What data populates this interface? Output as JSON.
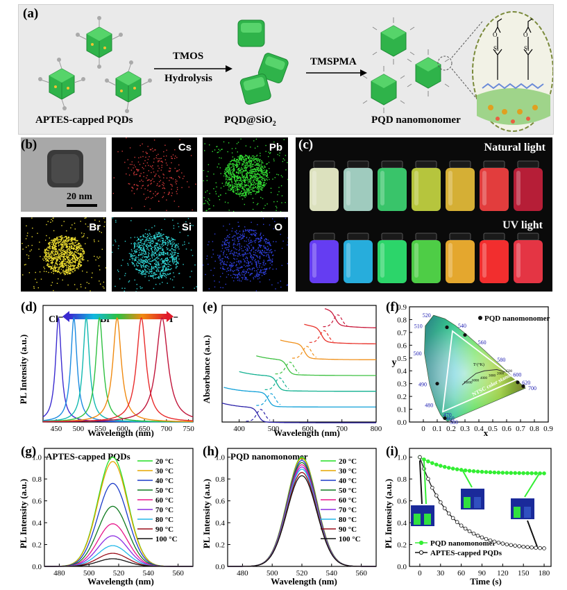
{
  "panel_labels": {
    "a": "(a)",
    "b": "(b)",
    "c": "(c)",
    "d": "(d)",
    "e": "(e)",
    "f": "(f)",
    "g": "(g)",
    "h": "(h)",
    "i": "(i)"
  },
  "panel_a": {
    "left_caption": "APTES-capped PQDs",
    "arrow1_top": "TMOS",
    "arrow1_bottom": "Hydrolysis",
    "middle_caption": "PQD@SiO",
    "middle_caption_sub": "2",
    "arrow2_top": "TMSPMA",
    "right_caption": "PQD nanomonomer",
    "colors": {
      "background": "#eaeaea",
      "cube": "#2fb34a",
      "cube_dark": "#1f8a36",
      "ligand": "#999999",
      "dot": "#f2c230"
    }
  },
  "panel_b": {
    "scale_bar": "20 nm",
    "maps": [
      {
        "element": "Cs",
        "color": "#d63b3b"
      },
      {
        "element": "Pb",
        "color": "#33e033"
      },
      {
        "element": "Br",
        "color": "#f0e030"
      },
      {
        "element": "Si",
        "color": "#30d8d8"
      },
      {
        "element": "O",
        "color": "#3040e0"
      }
    ]
  },
  "panel_c": {
    "natural_label": "Natural light",
    "uv_label": "UV light",
    "natural_colors": [
      "#e8edc8",
      "#a8d6c8",
      "#3ccf70",
      "#c0d040",
      "#e0b838",
      "#ee4040",
      "#c0203a"
    ],
    "uv_colors": [
      "#6a40ff",
      "#29b6e8",
      "#2ee070",
      "#52d84a",
      "#f0b030",
      "#ff3030",
      "#f03848"
    ]
  },
  "panel_d": {
    "chart_data": {
      "type": "line",
      "xlabel": "Wavelength (nm)",
      "ylabel": "PL Intensity (a.u.)",
      "xlim": [
        420,
        760
      ],
      "x_ticks": [
        450,
        500,
        550,
        600,
        650,
        700,
        750
      ],
      "legend_text": {
        "left": "Cl⁻",
        "mid": "Br⁻",
        "right": "I⁻"
      },
      "series": [
        {
          "name": "peak 455",
          "peak": 455,
          "fwhm": 16,
          "color": "#3a2ad0"
        },
        {
          "name": "peak 490",
          "peak": 490,
          "fwhm": 17,
          "color": "#1a8ae0"
        },
        {
          "name": "peak 518",
          "peak": 518,
          "fwhm": 18,
          "color": "#10b8b0"
        },
        {
          "name": "peak 548",
          "peak": 548,
          "fwhm": 20,
          "color": "#2ec040"
        },
        {
          "name": "peak 588",
          "peak": 588,
          "fwhm": 23,
          "color": "#f08a10"
        },
        {
          "name": "peak 643",
          "peak": 643,
          "fwhm": 26,
          "color": "#e82a2a"
        },
        {
          "name": "peak 690",
          "peak": 690,
          "fwhm": 32,
          "color": "#c0143a"
        }
      ]
    }
  },
  "panel_e": {
    "chart_data": {
      "type": "line",
      "xlabel": "Wavelength (nm)",
      "ylabel": "Absorbance (a.u.)",
      "xlim": [
        350,
        800
      ],
      "x_ticks": [
        400,
        500,
        600,
        700,
        800
      ],
      "series": [
        {
          "name": "abs 455",
          "edge": 455,
          "offset": 0.0,
          "color": "#2a20a8"
        },
        {
          "name": "abs 485",
          "edge": 485,
          "offset": 1.0,
          "color": "#10a0d8"
        },
        {
          "name": "abs 510",
          "edge": 510,
          "offset": 2.0,
          "color": "#10b090"
        },
        {
          "name": "abs 540",
          "edge": 540,
          "offset": 3.0,
          "color": "#3cc040"
        },
        {
          "name": "abs 590",
          "edge": 590,
          "offset": 4.0,
          "color": "#f0901a"
        },
        {
          "name": "abs 640",
          "edge": 640,
          "offset": 5.0,
          "color": "#e83028"
        },
        {
          "name": "abs 680",
          "edge": 680,
          "offset": 6.0,
          "color": "#c8183a"
        }
      ]
    }
  },
  "panel_f": {
    "chart_data": {
      "type": "scatter",
      "xlabel": "x",
      "ylabel": "y",
      "xlim": [
        -0.1,
        0.9
      ],
      "ylim": [
        0,
        0.9
      ],
      "x_ticks": [
        0.0,
        0.1,
        0.2,
        0.3,
        0.4,
        0.5,
        0.6,
        0.7,
        0.8,
        0.9
      ],
      "y_ticks": [
        0.0,
        0.1,
        0.2,
        0.3,
        0.4,
        0.5,
        0.6,
        0.7,
        0.8,
        0.9
      ],
      "legend": "PQD nanomonomer",
      "locus_labels": [
        {
          "text": "380",
          "x": 0.17,
          "y": 0.0
        },
        {
          "text": "460",
          "x": 0.144,
          "y": 0.03
        },
        {
          "text": "470",
          "x": 0.124,
          "y": 0.058
        },
        {
          "text": "480",
          "x": 0.091,
          "y": 0.133
        },
        {
          "text": "490",
          "x": 0.045,
          "y": 0.295
        },
        {
          "text": "500",
          "x": 0.008,
          "y": 0.538
        },
        {
          "text": "510",
          "x": 0.014,
          "y": 0.75
        },
        {
          "text": "520",
          "x": 0.074,
          "y": 0.834
        },
        {
          "text": "540",
          "x": 0.23,
          "y": 0.754
        },
        {
          "text": "560",
          "x": 0.373,
          "y": 0.624
        },
        {
          "text": "580",
          "x": 0.512,
          "y": 0.487
        },
        {
          "text": "600",
          "x": 0.627,
          "y": 0.372
        },
        {
          "text": "620",
          "x": 0.691,
          "y": 0.308
        },
        {
          "text": "700",
          "x": 0.735,
          "y": 0.265
        }
      ],
      "points": [
        {
          "x": 0.155,
          "y": 0.03
        },
        {
          "x": 0.1,
          "y": 0.3
        },
        {
          "x": 0.17,
          "y": 0.74
        },
        {
          "x": 0.3,
          "y": 0.68
        },
        {
          "x": 0.68,
          "y": 0.31
        },
        {
          "x": 0.72,
          "y": 0.28
        }
      ],
      "ntsc": [
        [
          0.67,
          0.33
        ],
        [
          0.21,
          0.71
        ],
        [
          0.14,
          0.08
        ]
      ],
      "ntsc_label": "NTSC color standard",
      "planck_label": "Tᶜ(°K)",
      "planck_ticks": [
        "10000",
        "6000",
        "4000",
        "3000",
        "2000",
        "1500"
      ]
    }
  },
  "panel_g": {
    "chart_data": {
      "type": "line",
      "title": "APTES-capped PQDs",
      "xlabel": "Wavelength (nm)",
      "ylabel": "PL Intensity (a.u.)",
      "xlim": [
        470,
        570
      ],
      "ylim": [
        0,
        1.08
      ],
      "x_ticks": [
        480,
        500,
        520,
        540,
        560
      ],
      "y_ticks": [
        0.0,
        0.2,
        0.4,
        0.6,
        0.8,
        1.0
      ],
      "peak": 516,
      "series": [
        {
          "name": "20 °C",
          "amp": 1.0,
          "color": "#22dd22"
        },
        {
          "name": "30 °C",
          "amp": 0.96,
          "color": "#e6a500"
        },
        {
          "name": "40 °C",
          "amp": 0.76,
          "color": "#1a3ac8"
        },
        {
          "name": "50 °C",
          "amp": 0.55,
          "color": "#0e7a1e"
        },
        {
          "name": "60 °C",
          "amp": 0.39,
          "color": "#e8138a"
        },
        {
          "name": "70 °C",
          "amp": 0.28,
          "color": "#8a2be2"
        },
        {
          "name": "80 °C",
          "amp": 0.19,
          "color": "#22b8e8"
        },
        {
          "name": "90 °C",
          "amp": 0.12,
          "color": "#9a0e1a"
        },
        {
          "name": "100 °C",
          "amp": 0.07,
          "color": "#111111"
        }
      ]
    }
  },
  "panel_h": {
    "chart_data": {
      "type": "line",
      "title": "PQD nanomonomer",
      "xlabel": "Wavelength (nm)",
      "ylabel": "PL Intensity (a.u.)",
      "xlim": [
        470,
        570
      ],
      "ylim": [
        0,
        1.08
      ],
      "x_ticks": [
        480,
        500,
        520,
        540,
        560
      ],
      "y_ticks": [
        0.0,
        0.2,
        0.4,
        0.6,
        0.8,
        1.0
      ],
      "peak": 520,
      "series": [
        {
          "name": "20 °C",
          "amp": 1.0,
          "color": "#22dd22"
        },
        {
          "name": "30 °C",
          "amp": 0.99,
          "color": "#e6a500"
        },
        {
          "name": "40 °C",
          "amp": 0.97,
          "color": "#1a3ac8"
        },
        {
          "name": "50 °C",
          "amp": 0.95,
          "color": "#0e7a1e"
        },
        {
          "name": "60 °C",
          "amp": 0.93,
          "color": "#e8138a"
        },
        {
          "name": "70 °C",
          "amp": 0.91,
          "color": "#8a2be2"
        },
        {
          "name": "80 °C",
          "amp": 0.89,
          "color": "#22b8e8"
        },
        {
          "name": "90 °C",
          "amp": 0.86,
          "color": "#9a0e1a"
        },
        {
          "name": "100 °C",
          "amp": 0.83,
          "color": "#111111"
        }
      ]
    }
  },
  "panel_i": {
    "chart_data": {
      "type": "line",
      "xlabel": "Time (s)",
      "ylabel": "PL Intensity (a.u.)",
      "xlim": [
        -15,
        190
      ],
      "ylim": [
        0,
        1.08
      ],
      "x_ticks": [
        0,
        30,
        60,
        90,
        120,
        150,
        180
      ],
      "y_ticks": [
        0.0,
        0.2,
        0.4,
        0.6,
        0.8,
        1.0
      ],
      "series": [
        {
          "name": "PQD nanomonomer",
          "color": "#33ee33",
          "start": 1.0,
          "end": 0.85,
          "tau": 40
        },
        {
          "name": "APTES-capped PQDs",
          "color": "#111111",
          "start": 1.0,
          "end": 0.15,
          "tau": 45
        }
      ]
    }
  }
}
